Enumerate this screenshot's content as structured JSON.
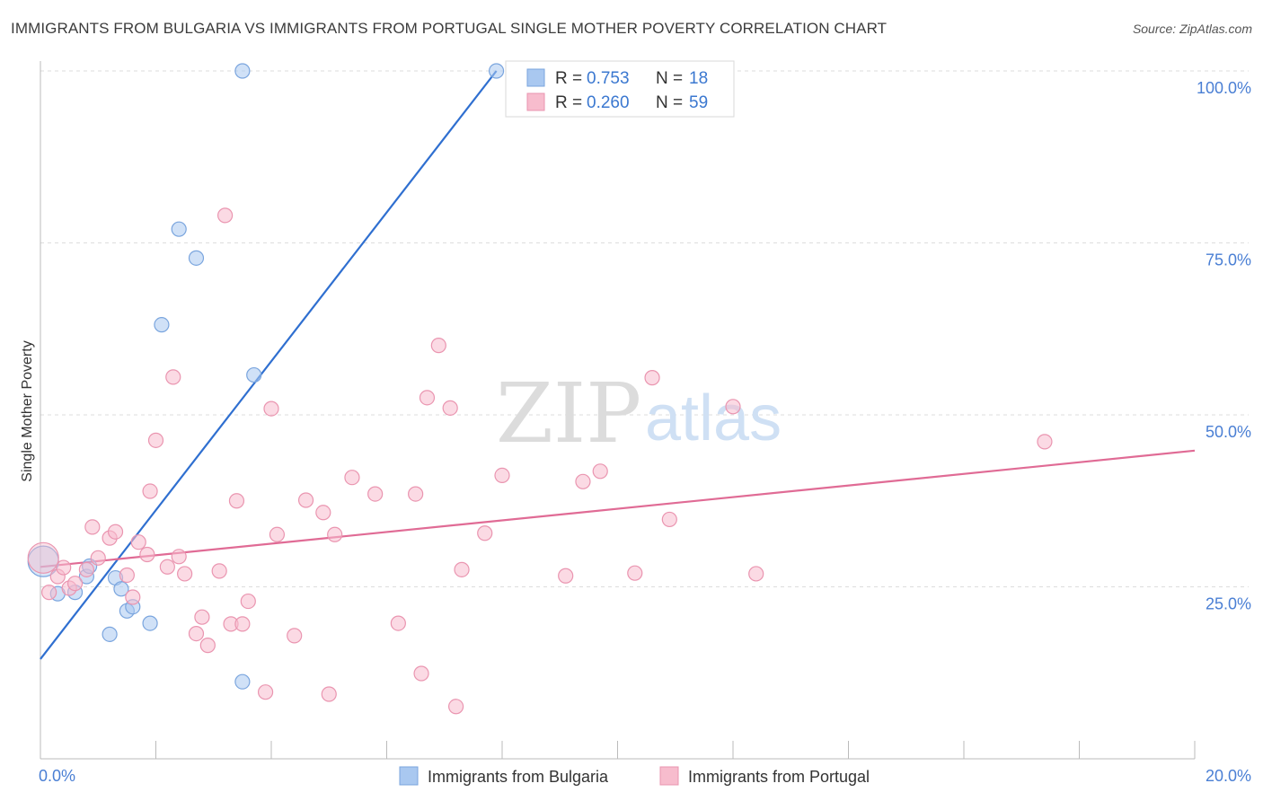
{
  "title": "IMMIGRANTS FROM BULGARIA VS IMMIGRANTS FROM PORTUGAL SINGLE MOTHER POVERTY CORRELATION CHART",
  "source": "Source: ZipAtlas.com",
  "watermark": {
    "zip": "ZIP",
    "atlas": "atlas"
  },
  "colors": {
    "bulgaria_fill": "#a9c8f0",
    "bulgaria_stroke": "#7aa5de",
    "bulgaria_line": "#2f6fd0",
    "portugal_fill": "#f7bccd",
    "portugal_stroke": "#ea95b0",
    "portugal_line": "#e06b95",
    "tick_label": "#4a7fd4",
    "grid": "#dddddd"
  },
  "legend": {
    "r_label": "R =",
    "n_label": "N =",
    "rows": [
      {
        "series": "bulgaria",
        "r": "0.753",
        "n": "18"
      },
      {
        "series": "portugal",
        "r": "0.260",
        "n": "59"
      }
    ]
  },
  "chart_data": {
    "type": "scatter",
    "title": "IMMIGRANTS FROM BULGARIA VS IMMIGRANTS FROM PORTUGAL SINGLE MOTHER POVERTY CORRELATION CHART",
    "xlabel": "",
    "ylabel": "Single Mother Poverty",
    "xlim": [
      0,
      20
    ],
    "ylim": [
      0,
      100
    ],
    "x_tick_labels": [
      "0.0%",
      "20.0%"
    ],
    "y_ticks": [
      25,
      50,
      75,
      100
    ],
    "y_tick_labels": [
      "25.0%",
      "50.0%",
      "75.0%",
      "100.0%"
    ],
    "grid": true,
    "legend_placement": "top-center",
    "series": [
      {
        "name": "Immigrants from Bulgaria",
        "key": "bulgaria",
        "points": [
          [
            0.05,
            28.7
          ],
          [
            0.3,
            24.0
          ],
          [
            0.6,
            24.2
          ],
          [
            0.8,
            26.5
          ],
          [
            0.85,
            28.0
          ],
          [
            1.3,
            26.3
          ],
          [
            1.4,
            24.7
          ],
          [
            1.5,
            21.5
          ],
          [
            1.6,
            22.1
          ],
          [
            1.9,
            19.7
          ],
          [
            2.1,
            63.1
          ],
          [
            2.4,
            77.0
          ],
          [
            2.7,
            72.8
          ],
          [
            1.2,
            18.1
          ],
          [
            3.5,
            100.0
          ],
          [
            3.7,
            55.8
          ],
          [
            7.9,
            100.0
          ],
          [
            3.5,
            11.2
          ]
        ],
        "trend": {
          "x": [
            0,
            7.9
          ],
          "y": [
            14.5,
            100.0
          ]
        }
      },
      {
        "name": "Immigrants from Portugal",
        "key": "portugal",
        "points": [
          [
            0.05,
            29.2
          ],
          [
            0.15,
            24.2
          ],
          [
            0.3,
            26.5
          ],
          [
            0.5,
            24.8
          ],
          [
            0.6,
            25.5
          ],
          [
            0.8,
            27.5
          ],
          [
            0.9,
            33.7
          ],
          [
            1.0,
            29.2
          ],
          [
            1.2,
            32.1
          ],
          [
            1.3,
            33.0
          ],
          [
            1.5,
            26.7
          ],
          [
            1.6,
            23.5
          ],
          [
            1.7,
            31.5
          ],
          [
            1.85,
            29.7
          ],
          [
            1.9,
            38.9
          ],
          [
            2.0,
            46.3
          ],
          [
            2.2,
            27.9
          ],
          [
            2.3,
            55.5
          ],
          [
            2.4,
            29.4
          ],
          [
            2.5,
            26.9
          ],
          [
            2.7,
            18.2
          ],
          [
            2.8,
            20.6
          ],
          [
            2.9,
            16.5
          ],
          [
            3.1,
            27.3
          ],
          [
            3.2,
            79.0
          ],
          [
            3.3,
            19.6
          ],
          [
            3.4,
            37.5
          ],
          [
            3.5,
            19.6
          ],
          [
            3.6,
            22.9
          ],
          [
            3.9,
            9.7
          ],
          [
            4.0,
            50.9
          ],
          [
            4.1,
            32.6
          ],
          [
            4.4,
            17.9
          ],
          [
            4.6,
            37.6
          ],
          [
            4.9,
            35.8
          ],
          [
            5.0,
            9.4
          ],
          [
            5.1,
            32.6
          ],
          [
            5.4,
            40.9
          ],
          [
            5.8,
            38.5
          ],
          [
            6.2,
            19.7
          ],
          [
            6.5,
            38.5
          ],
          [
            6.6,
            12.4
          ],
          [
            6.7,
            52.5
          ],
          [
            6.9,
            60.1
          ],
          [
            7.1,
            51.0
          ],
          [
            7.2,
            7.6
          ],
          [
            7.3,
            27.5
          ],
          [
            7.7,
            32.8
          ],
          [
            8.0,
            41.2
          ],
          [
            9.1,
            26.6
          ],
          [
            9.4,
            40.3
          ],
          [
            9.7,
            41.8
          ],
          [
            10.3,
            27.0
          ],
          [
            10.6,
            55.4
          ],
          [
            10.9,
            34.8
          ],
          [
            12.0,
            51.2
          ],
          [
            12.4,
            26.9
          ],
          [
            17.4,
            46.1
          ],
          [
            0.4,
            27.8
          ]
        ],
        "trend": {
          "x": [
            0,
            20
          ],
          "y": [
            27.9,
            44.8
          ]
        }
      }
    ]
  },
  "bottom_legend": [
    {
      "series": "bulgaria",
      "label": "Immigrants from Bulgaria"
    },
    {
      "series": "portugal",
      "label": "Immigrants from Portugal"
    }
  ]
}
